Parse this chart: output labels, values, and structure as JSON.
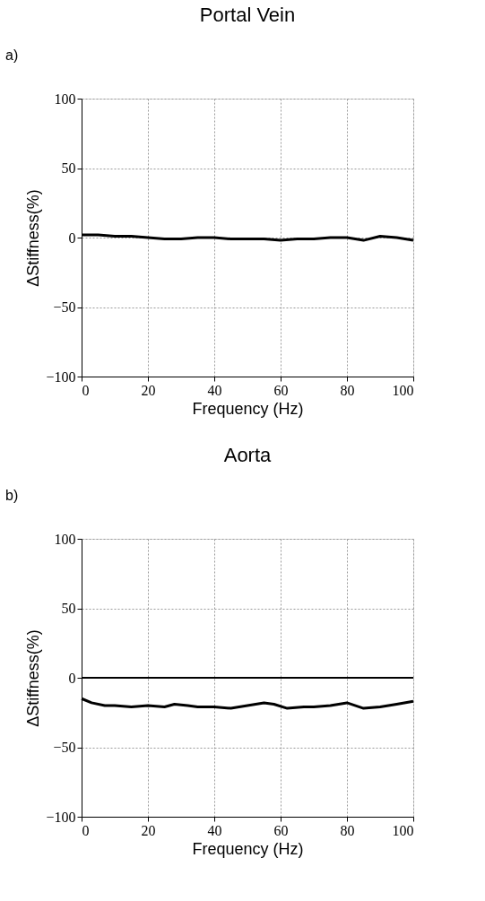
{
  "chart_data": [
    {
      "type": "line",
      "title": "Portal Vein",
      "xlabel": "Frequency (Hz)",
      "ylabel": "ΔStiffness(%)",
      "annotations": [
        "a)"
      ],
      "x": [
        0,
        5,
        10,
        15,
        20,
        25,
        30,
        35,
        40,
        45,
        50,
        55,
        60,
        65,
        70,
        75,
        80,
        85,
        90,
        95,
        100
      ],
      "series": [
        {
          "color": "#000000",
          "values": [
            2,
            2,
            1,
            1,
            0,
            -1,
            -1,
            0,
            0,
            -1,
            -1,
            -1,
            -2,
            -1,
            -1,
            0,
            0,
            -2,
            1,
            0,
            -2
          ]
        }
      ],
      "xlim": [
        0,
        100
      ],
      "ylim": [
        -100,
        100
      ],
      "xticks": [
        0,
        20,
        40,
        60,
        80,
        100
      ],
      "yticks": [
        -100,
        -50,
        0,
        50,
        100
      ],
      "grid": true,
      "line_style": "solid"
    },
    {
      "type": "line",
      "title": "Aorta",
      "xlabel": "Frequency (Hz)",
      "ylabel": "ΔStiffness(%)",
      "annotations": [
        "b)"
      ],
      "x": [
        0,
        3,
        7,
        10,
        15,
        20,
        25,
        28,
        32,
        35,
        40,
        45,
        50,
        55,
        58,
        62,
        67,
        70,
        75,
        80,
        85,
        90,
        95,
        100
      ],
      "series": [
        {
          "color": "#000000",
          "values": [
            -15,
            -18,
            -20,
            -20,
            -21,
            -20,
            -21,
            -19,
            -20,
            -21,
            -21,
            -22,
            -20,
            -18,
            -19,
            -22,
            -21,
            -21,
            -20,
            -18,
            -22,
            -21,
            -19,
            -17
          ]
        }
      ],
      "ref_lines": [
        {
          "axis": "y",
          "value": 0,
          "color": "#000000"
        }
      ],
      "xlim": [
        0,
        100
      ],
      "ylim": [
        -100,
        100
      ],
      "xticks": [
        0,
        20,
        40,
        60,
        80,
        100
      ],
      "yticks": [
        -100,
        -50,
        0,
        50,
        100
      ],
      "grid": true,
      "line_style": "solid"
    }
  ]
}
